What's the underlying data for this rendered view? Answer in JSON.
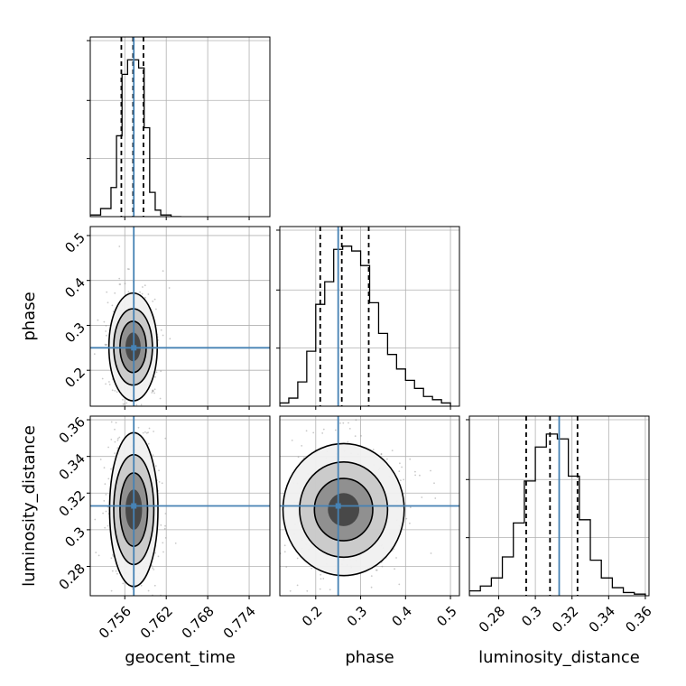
{
  "chart_data": {
    "type": "corner",
    "parameters": [
      {
        "name": "geocent_time",
        "label": "geocent_time",
        "range": [
          0.751,
          0.777
        ],
        "ticks": [
          0.756,
          0.762,
          0.768,
          0.774
        ],
        "truth": 0.7573,
        "quantiles": [
          0.7555,
          0.7572,
          0.7587
        ]
      },
      {
        "name": "phase",
        "label": "phase",
        "range": [
          0.12,
          0.52
        ],
        "ticks": [
          0.2,
          0.3,
          0.4,
          0.5
        ],
        "truth": 0.25,
        "quantiles": [
          0.21,
          0.258,
          0.318
        ]
      },
      {
        "name": "luminosity_distance",
        "label": "luminosity_distance",
        "range": [
          0.264,
          0.362
        ],
        "ticks": [
          0.28,
          0.3,
          0.32,
          0.34,
          0.36
        ],
        "truth": 0.313,
        "quantiles": [
          0.295,
          0.308,
          0.323
        ]
      }
    ],
    "histograms": [
      {
        "param": "geocent_time",
        "bin_edges": [
          0.751,
          0.7525,
          0.754,
          0.7548,
          0.7556,
          0.7564,
          0.7572,
          0.758,
          0.7588,
          0.7596,
          0.7604,
          0.7612,
          0.7627,
          0.7642
        ],
        "counts": [
          0.01,
          0.05,
          0.18,
          0.5,
          0.88,
          0.97,
          0.97,
          0.92,
          0.55,
          0.15,
          0.04,
          0.01,
          0.0
        ]
      },
      {
        "param": "phase",
        "bin_edges": [
          0.12,
          0.14,
          0.16,
          0.18,
          0.2,
          0.22,
          0.24,
          0.26,
          0.28,
          0.3,
          0.32,
          0.34,
          0.36,
          0.38,
          0.4,
          0.42,
          0.44,
          0.46,
          0.48,
          0.5
        ],
        "counts": [
          0.02,
          0.05,
          0.15,
          0.34,
          0.63,
          0.77,
          0.97,
          0.99,
          0.96,
          0.87,
          0.64,
          0.45,
          0.32,
          0.23,
          0.16,
          0.11,
          0.06,
          0.04,
          0.02
        ]
      },
      {
        "param": "luminosity_distance",
        "bin_edges": [
          0.264,
          0.27,
          0.276,
          0.282,
          0.288,
          0.294,
          0.3,
          0.306,
          0.312,
          0.318,
          0.324,
          0.33,
          0.336,
          0.342,
          0.348,
          0.354,
          0.36
        ],
        "counts": [
          0.03,
          0.06,
          0.11,
          0.24,
          0.45,
          0.71,
          0.92,
          1.0,
          0.97,
          0.74,
          0.47,
          0.22,
          0.11,
          0.05,
          0.02,
          0.01
        ]
      }
    ],
    "contours": [
      {
        "x": "geocent_time",
        "y": "phase",
        "center": [
          0.7572,
          0.252
        ],
        "radii": [
          [
            0.0035,
            0.12
          ],
          [
            0.0028,
            0.085
          ],
          [
            0.0019,
            0.057
          ],
          [
            0.0011,
            0.032
          ]
        ]
      },
      {
        "x": "geocent_time",
        "y": "luminosity_distance",
        "center": [
          0.7573,
          0.311
        ],
        "radii": [
          [
            0.0035,
            0.042
          ],
          [
            0.0029,
            0.03
          ],
          [
            0.002,
            0.02
          ],
          [
            0.0012,
            0.011
          ]
        ]
      },
      {
        "x": "phase",
        "y": "luminosity_distance",
        "center": [
          0.262,
          0.311
        ],
        "radii": [
          [
            0.135,
            0.036
          ],
          [
            0.098,
            0.026
          ],
          [
            0.065,
            0.017
          ],
          [
            0.035,
            0.009
          ]
        ]
      }
    ],
    "grid": true
  }
}
